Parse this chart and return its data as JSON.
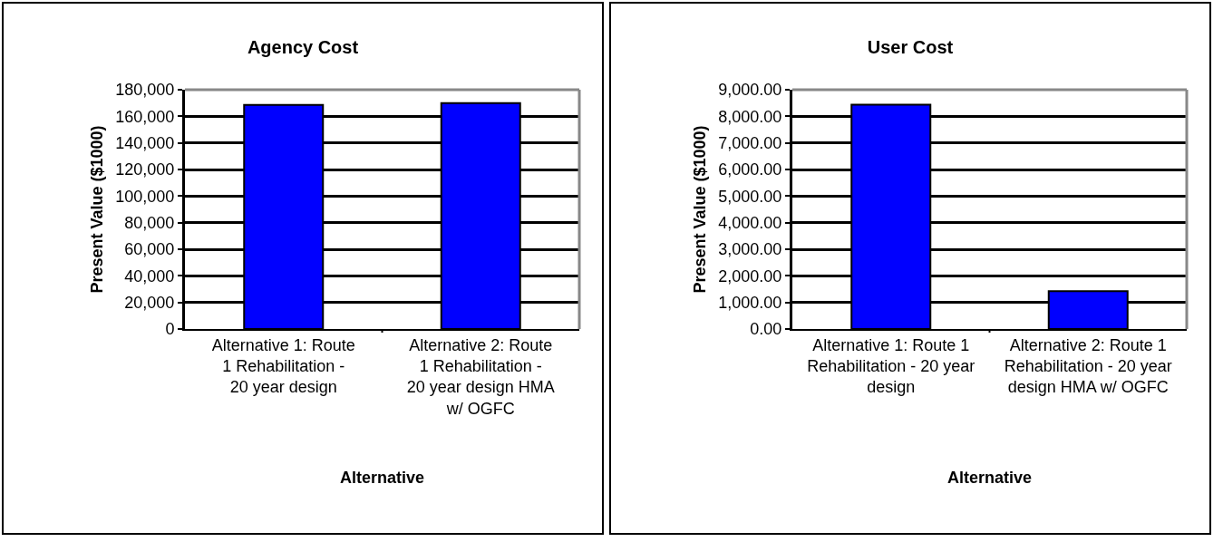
{
  "chart_data": [
    {
      "type": "bar",
      "title": "Agency Cost",
      "xlabel": "Alternative",
      "ylabel": "Present Value ($1000)",
      "categories": [
        "Alternative 1: Route 1 Rehabilitation - 20 year design",
        "Alternative 2: Route 1 Rehabilitation - 20 year design HMA w/ OGFC"
      ],
      "values": [
        168500,
        170000
      ],
      "color": "#0000ff",
      "ylim": [
        0,
        180000
      ],
      "yticks": [
        {
          "value": 0,
          "label": "0"
        },
        {
          "value": 20000,
          "label": "20,000"
        },
        {
          "value": 40000,
          "label": "40,000"
        },
        {
          "value": 60000,
          "label": "60,000"
        },
        {
          "value": 80000,
          "label": "80,000"
        },
        {
          "value": 100000,
          "label": "100,000"
        },
        {
          "value": 120000,
          "label": "120,000"
        },
        {
          "value": 140000,
          "label": "140,000"
        },
        {
          "value": 160000,
          "label": "160,000"
        },
        {
          "value": 180000,
          "label": "180,000"
        }
      ],
      "grid": "y"
    },
    {
      "type": "bar",
      "title": "User Cost",
      "xlabel": "Alternative",
      "ylabel": "Present Value ($1000)",
      "categories": [
        "Alternative 1: Route 1 Rehabilitation - 20 year design",
        "Alternative 2: Route 1 Rehabilitation - 20 year design HMA w/ OGFC"
      ],
      "values": [
        8440,
        1420
      ],
      "color": "#0000ff",
      "ylim": [
        0,
        9000
      ],
      "yticks": [
        {
          "value": 0,
          "label": "0.00"
        },
        {
          "value": 1000,
          "label": "1,000.00"
        },
        {
          "value": 2000,
          "label": "2,000.00"
        },
        {
          "value": 3000,
          "label": "3,000.00"
        },
        {
          "value": 4000,
          "label": "4,000.00"
        },
        {
          "value": 5000,
          "label": "5,000.00"
        },
        {
          "value": 6000,
          "label": "6,000.00"
        },
        {
          "value": 7000,
          "label": "7,000.00"
        },
        {
          "value": 8000,
          "label": "8,000.00"
        },
        {
          "value": 9000,
          "label": "9,000.00"
        }
      ],
      "grid": "y"
    }
  ]
}
